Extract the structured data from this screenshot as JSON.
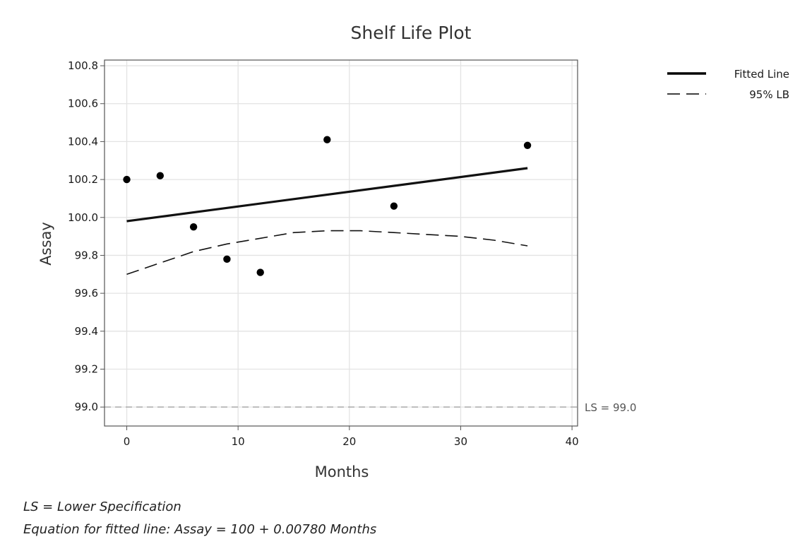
{
  "chart_data": {
    "type": "scatter",
    "title": "Shelf Life Plot",
    "xlabel": "Months",
    "ylabel": "Assay",
    "xlim": [
      -2,
      40.5
    ],
    "ylim": [
      98.9,
      100.83
    ],
    "xticks": [
      0,
      10,
      20,
      30,
      40
    ],
    "yticks": [
      99.0,
      99.2,
      99.4,
      99.6,
      99.8,
      100.0,
      100.2,
      100.4,
      100.6,
      100.8
    ],
    "xtick_labels": [
      "0",
      "10",
      "20",
      "30",
      "40"
    ],
    "ytick_labels": [
      "99.0",
      "99.2",
      "99.4",
      "99.6",
      "99.8",
      "100.0",
      "100.2",
      "100.4",
      "100.6",
      "100.8"
    ],
    "grid": true,
    "points": {
      "x": [
        0,
        3,
        6,
        9,
        12,
        18,
        24,
        36
      ],
      "y": [
        100.2,
        100.22,
        99.95,
        99.78,
        99.71,
        100.41,
        100.06,
        100.38
      ]
    },
    "series": [
      {
        "name": "Fitted Line",
        "style": "solid",
        "x": [
          0,
          36
        ],
        "y": [
          99.98,
          100.26
        ]
      },
      {
        "name": "95% LB",
        "style": "dashed",
        "x": [
          0,
          3,
          6,
          9,
          12,
          15,
          18,
          21,
          24,
          27,
          30,
          33,
          36
        ],
        "y": [
          99.7,
          99.76,
          99.82,
          99.86,
          99.89,
          99.92,
          99.93,
          99.93,
          99.92,
          99.91,
          99.9,
          99.88,
          99.85
        ]
      }
    ],
    "reference_line": {
      "y": 99.0,
      "label": "LS = 99.0",
      "color": "#aaaaaa"
    },
    "legend_position": "top-right"
  },
  "footnotes": [
    "LS = Lower Specification",
    "Equation for fitted line: Assay = 100 + 0.00780 Months"
  ],
  "colors": {
    "plot_border": "#555555",
    "grid": "#e3e3e3",
    "marker": "#000000",
    "line": "#111111"
  }
}
